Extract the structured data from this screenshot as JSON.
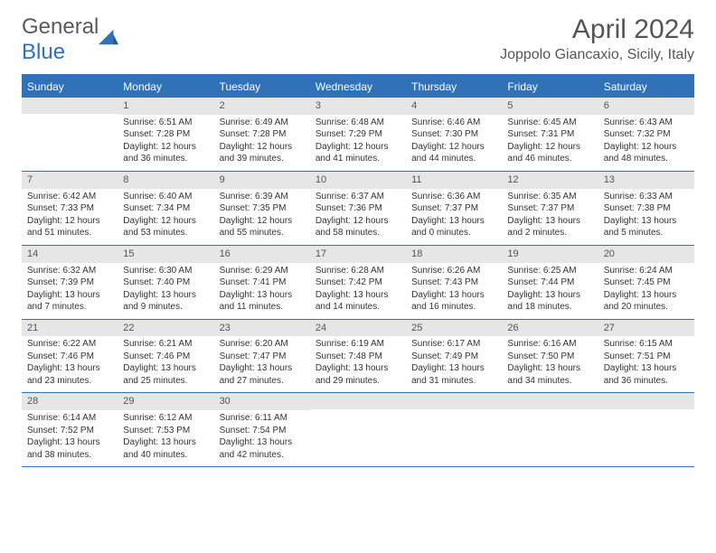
{
  "logo": {
    "text1": "General",
    "text2": "Blue"
  },
  "title": "April 2024",
  "location": "Joppolo Giancaxio, Sicily, Italy",
  "colors": {
    "accent": "#2f72b8",
    "dayHeaderBg": "#e6e6e6"
  },
  "daysOfWeek": [
    "Sunday",
    "Monday",
    "Tuesday",
    "Wednesday",
    "Thursday",
    "Friday",
    "Saturday"
  ],
  "weeks": [
    [
      null,
      {
        "n": "1",
        "sr": "6:51 AM",
        "ss": "7:28 PM",
        "dl": "12 hours and 36 minutes."
      },
      {
        "n": "2",
        "sr": "6:49 AM",
        "ss": "7:28 PM",
        "dl": "12 hours and 39 minutes."
      },
      {
        "n": "3",
        "sr": "6:48 AM",
        "ss": "7:29 PM",
        "dl": "12 hours and 41 minutes."
      },
      {
        "n": "4",
        "sr": "6:46 AM",
        "ss": "7:30 PM",
        "dl": "12 hours and 44 minutes."
      },
      {
        "n": "5",
        "sr": "6:45 AM",
        "ss": "7:31 PM",
        "dl": "12 hours and 46 minutes."
      },
      {
        "n": "6",
        "sr": "6:43 AM",
        "ss": "7:32 PM",
        "dl": "12 hours and 48 minutes."
      }
    ],
    [
      {
        "n": "7",
        "sr": "6:42 AM",
        "ss": "7:33 PM",
        "dl": "12 hours and 51 minutes."
      },
      {
        "n": "8",
        "sr": "6:40 AM",
        "ss": "7:34 PM",
        "dl": "12 hours and 53 minutes."
      },
      {
        "n": "9",
        "sr": "6:39 AM",
        "ss": "7:35 PM",
        "dl": "12 hours and 55 minutes."
      },
      {
        "n": "10",
        "sr": "6:37 AM",
        "ss": "7:36 PM",
        "dl": "12 hours and 58 minutes."
      },
      {
        "n": "11",
        "sr": "6:36 AM",
        "ss": "7:37 PM",
        "dl": "13 hours and 0 minutes."
      },
      {
        "n": "12",
        "sr": "6:35 AM",
        "ss": "7:37 PM",
        "dl": "13 hours and 2 minutes."
      },
      {
        "n": "13",
        "sr": "6:33 AM",
        "ss": "7:38 PM",
        "dl": "13 hours and 5 minutes."
      }
    ],
    [
      {
        "n": "14",
        "sr": "6:32 AM",
        "ss": "7:39 PM",
        "dl": "13 hours and 7 minutes."
      },
      {
        "n": "15",
        "sr": "6:30 AM",
        "ss": "7:40 PM",
        "dl": "13 hours and 9 minutes."
      },
      {
        "n": "16",
        "sr": "6:29 AM",
        "ss": "7:41 PM",
        "dl": "13 hours and 11 minutes."
      },
      {
        "n": "17",
        "sr": "6:28 AM",
        "ss": "7:42 PM",
        "dl": "13 hours and 14 minutes."
      },
      {
        "n": "18",
        "sr": "6:26 AM",
        "ss": "7:43 PM",
        "dl": "13 hours and 16 minutes."
      },
      {
        "n": "19",
        "sr": "6:25 AM",
        "ss": "7:44 PM",
        "dl": "13 hours and 18 minutes."
      },
      {
        "n": "20",
        "sr": "6:24 AM",
        "ss": "7:45 PM",
        "dl": "13 hours and 20 minutes."
      }
    ],
    [
      {
        "n": "21",
        "sr": "6:22 AM",
        "ss": "7:46 PM",
        "dl": "13 hours and 23 minutes."
      },
      {
        "n": "22",
        "sr": "6:21 AM",
        "ss": "7:46 PM",
        "dl": "13 hours and 25 minutes."
      },
      {
        "n": "23",
        "sr": "6:20 AM",
        "ss": "7:47 PM",
        "dl": "13 hours and 27 minutes."
      },
      {
        "n": "24",
        "sr": "6:19 AM",
        "ss": "7:48 PM",
        "dl": "13 hours and 29 minutes."
      },
      {
        "n": "25",
        "sr": "6:17 AM",
        "ss": "7:49 PM",
        "dl": "13 hours and 31 minutes."
      },
      {
        "n": "26",
        "sr": "6:16 AM",
        "ss": "7:50 PM",
        "dl": "13 hours and 34 minutes."
      },
      {
        "n": "27",
        "sr": "6:15 AM",
        "ss": "7:51 PM",
        "dl": "13 hours and 36 minutes."
      }
    ],
    [
      {
        "n": "28",
        "sr": "6:14 AM",
        "ss": "7:52 PM",
        "dl": "13 hours and 38 minutes."
      },
      {
        "n": "29",
        "sr": "6:12 AM",
        "ss": "7:53 PM",
        "dl": "13 hours and 40 minutes."
      },
      {
        "n": "30",
        "sr": "6:11 AM",
        "ss": "7:54 PM",
        "dl": "13 hours and 42 minutes."
      },
      null,
      null,
      null,
      null
    ]
  ],
  "labels": {
    "sunrise": "Sunrise: ",
    "sunset": "Sunset: ",
    "daylight": "Daylight: "
  }
}
